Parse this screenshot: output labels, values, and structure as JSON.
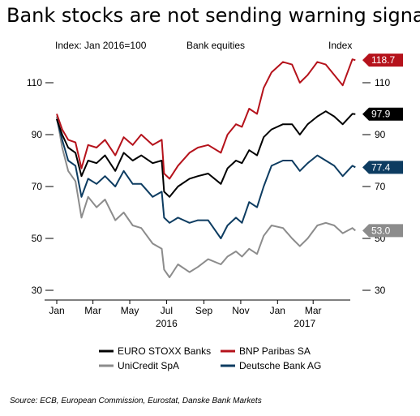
{
  "chart_data": {
    "type": "line",
    "title": "Bank stocks are not sending warning signals",
    "subtitle": "Index: Jan 2016=100",
    "left_axis_note": "Bank equities",
    "right_axis_label": "Index",
    "ylim": [
      30,
      120
    ],
    "yticks": [
      30,
      50,
      70,
      90,
      110
    ],
    "ytick_labels": [
      "30",
      "50",
      "70",
      "90",
      "110"
    ],
    "x_start": "2016-01-01",
    "x_end": "2017-05-15",
    "x_ticks": [
      {
        "date": "2016-01-01",
        "label": "Jan"
      },
      {
        "date": "2016-03-01",
        "label": "Mar"
      },
      {
        "date": "2016-05-01",
        "label": "May"
      },
      {
        "date": "2016-07-01",
        "label": "Jul"
      },
      {
        "date": "2016-09-01",
        "label": "Sep"
      },
      {
        "date": "2016-11-01",
        "label": "Nov"
      },
      {
        "date": "2017-01-01",
        "label": "Jan"
      },
      {
        "date": "2017-03-01",
        "label": "Mar"
      }
    ],
    "year_labels": [
      {
        "date": "2016-07-01",
        "label": "2016"
      },
      {
        "date": "2017-02-15",
        "label": "2017"
      }
    ],
    "legend_placement": "bottom",
    "source": "Source: ECB, European Commission, Eurostat, Danske Bank Markets",
    "series": [
      {
        "name": "EURO STOXX Banks",
        "color": "#000000",
        "end_label": "97.9",
        "points": [
          [
            "2016-01-01",
            96
          ],
          [
            "2016-01-10",
            90
          ],
          [
            "2016-01-20",
            85
          ],
          [
            "2016-02-01",
            83
          ],
          [
            "2016-02-11",
            74
          ],
          [
            "2016-02-22",
            80
          ],
          [
            "2016-03-07",
            79
          ],
          [
            "2016-03-21",
            82
          ],
          [
            "2016-04-07",
            76
          ],
          [
            "2016-04-21",
            83
          ],
          [
            "2016-05-06",
            80
          ],
          [
            "2016-05-20",
            82
          ],
          [
            "2016-06-08",
            79
          ],
          [
            "2016-06-23",
            80
          ],
          [
            "2016-06-27",
            68
          ],
          [
            "2016-07-06",
            66
          ],
          [
            "2016-07-20",
            70
          ],
          [
            "2016-08-08",
            73
          ],
          [
            "2016-08-22",
            74
          ],
          [
            "2016-09-08",
            75
          ],
          [
            "2016-09-29",
            71
          ],
          [
            "2016-10-10",
            77
          ],
          [
            "2016-10-24",
            80
          ],
          [
            "2016-11-03",
            79
          ],
          [
            "2016-11-15",
            84
          ],
          [
            "2016-11-28",
            82
          ],
          [
            "2016-12-09",
            89
          ],
          [
            "2016-12-22",
            92
          ],
          [
            "2017-01-10",
            94
          ],
          [
            "2017-01-25",
            94
          ],
          [
            "2017-02-07",
            90
          ],
          [
            "2017-02-20",
            94
          ],
          [
            "2017-03-08",
            97
          ],
          [
            "2017-03-22",
            99
          ],
          [
            "2017-04-05",
            97
          ],
          [
            "2017-04-19",
            94
          ],
          [
            "2017-05-05",
            98
          ],
          [
            "2017-05-10",
            97.9
          ]
        ]
      },
      {
        "name": "BNP Paribas SA",
        "color": "#b5121b",
        "end_label": "118.7",
        "points": [
          [
            "2016-01-01",
            98
          ],
          [
            "2016-01-10",
            92
          ],
          [
            "2016-01-20",
            88
          ],
          [
            "2016-02-01",
            87
          ],
          [
            "2016-02-11",
            77
          ],
          [
            "2016-02-22",
            86
          ],
          [
            "2016-03-07",
            85
          ],
          [
            "2016-03-21",
            88
          ],
          [
            "2016-04-07",
            82
          ],
          [
            "2016-04-21",
            89
          ],
          [
            "2016-05-06",
            86
          ],
          [
            "2016-05-20",
            90
          ],
          [
            "2016-06-08",
            86
          ],
          [
            "2016-06-23",
            88
          ],
          [
            "2016-06-27",
            75
          ],
          [
            "2016-07-06",
            73
          ],
          [
            "2016-07-20",
            78
          ],
          [
            "2016-08-08",
            83
          ],
          [
            "2016-08-22",
            85
          ],
          [
            "2016-09-08",
            86
          ],
          [
            "2016-09-29",
            83
          ],
          [
            "2016-10-10",
            90
          ],
          [
            "2016-10-24",
            94
          ],
          [
            "2016-11-03",
            93
          ],
          [
            "2016-11-15",
            100
          ],
          [
            "2016-11-28",
            98
          ],
          [
            "2016-12-09",
            108
          ],
          [
            "2016-12-22",
            114
          ],
          [
            "2017-01-10",
            118
          ],
          [
            "2017-01-25",
            117
          ],
          [
            "2017-02-07",
            110
          ],
          [
            "2017-02-20",
            113
          ],
          [
            "2017-03-08",
            118
          ],
          [
            "2017-03-22",
            117
          ],
          [
            "2017-04-05",
            113
          ],
          [
            "2017-04-19",
            109
          ],
          [
            "2017-05-05",
            119
          ],
          [
            "2017-05-10",
            118.7
          ]
        ]
      },
      {
        "name": "UniCredit SpA",
        "color": "#8c8c8c",
        "end_label": "53.0",
        "points": [
          [
            "2016-01-01",
            97
          ],
          [
            "2016-01-10",
            85
          ],
          [
            "2016-01-20",
            76
          ],
          [
            "2016-02-01",
            72
          ],
          [
            "2016-02-11",
            58
          ],
          [
            "2016-02-22",
            66
          ],
          [
            "2016-03-07",
            62
          ],
          [
            "2016-03-21",
            65
          ],
          [
            "2016-04-07",
            57
          ],
          [
            "2016-04-21",
            60
          ],
          [
            "2016-05-06",
            55
          ],
          [
            "2016-05-20",
            54
          ],
          [
            "2016-06-08",
            48
          ],
          [
            "2016-06-23",
            46
          ],
          [
            "2016-06-27",
            38
          ],
          [
            "2016-07-06",
            35
          ],
          [
            "2016-07-20",
            40
          ],
          [
            "2016-08-08",
            37
          ],
          [
            "2016-08-22",
            39
          ],
          [
            "2016-09-08",
            42
          ],
          [
            "2016-09-29",
            40
          ],
          [
            "2016-10-10",
            43
          ],
          [
            "2016-10-24",
            45
          ],
          [
            "2016-11-03",
            43
          ],
          [
            "2016-11-15",
            46
          ],
          [
            "2016-11-28",
            44
          ],
          [
            "2016-12-09",
            51
          ],
          [
            "2016-12-22",
            55
          ],
          [
            "2017-01-10",
            54
          ],
          [
            "2017-01-25",
            50
          ],
          [
            "2017-02-07",
            47
          ],
          [
            "2017-02-20",
            50
          ],
          [
            "2017-03-08",
            55
          ],
          [
            "2017-03-22",
            56
          ],
          [
            "2017-04-05",
            55
          ],
          [
            "2017-04-19",
            52
          ],
          [
            "2017-05-05",
            54
          ],
          [
            "2017-05-10",
            53.0
          ]
        ]
      },
      {
        "name": "Deutsche Bank AG",
        "color": "#0d3c61",
        "end_label": "77.4",
        "points": [
          [
            "2016-01-01",
            96
          ],
          [
            "2016-01-10",
            88
          ],
          [
            "2016-01-20",
            80
          ],
          [
            "2016-02-01",
            78
          ],
          [
            "2016-02-11",
            66
          ],
          [
            "2016-02-22",
            73
          ],
          [
            "2016-03-07",
            71
          ],
          [
            "2016-03-21",
            74
          ],
          [
            "2016-04-07",
            70
          ],
          [
            "2016-04-21",
            76
          ],
          [
            "2016-05-06",
            71
          ],
          [
            "2016-05-20",
            71
          ],
          [
            "2016-06-08",
            66
          ],
          [
            "2016-06-23",
            68
          ],
          [
            "2016-06-27",
            58
          ],
          [
            "2016-07-06",
            56
          ],
          [
            "2016-07-20",
            58
          ],
          [
            "2016-08-08",
            56
          ],
          [
            "2016-08-22",
            57
          ],
          [
            "2016-09-08",
            57
          ],
          [
            "2016-09-29",
            50
          ],
          [
            "2016-10-10",
            55
          ],
          [
            "2016-10-24",
            58
          ],
          [
            "2016-11-03",
            56
          ],
          [
            "2016-11-15",
            64
          ],
          [
            "2016-11-28",
            62
          ],
          [
            "2016-12-09",
            70
          ],
          [
            "2016-12-22",
            78
          ],
          [
            "2017-01-10",
            80
          ],
          [
            "2017-01-25",
            80
          ],
          [
            "2017-02-07",
            76
          ],
          [
            "2017-02-20",
            79
          ],
          [
            "2017-03-08",
            82
          ],
          [
            "2017-03-22",
            80
          ],
          [
            "2017-04-05",
            78
          ],
          [
            "2017-04-19",
            74
          ],
          [
            "2017-05-05",
            78
          ],
          [
            "2017-05-10",
            77.4
          ]
        ]
      }
    ]
  }
}
